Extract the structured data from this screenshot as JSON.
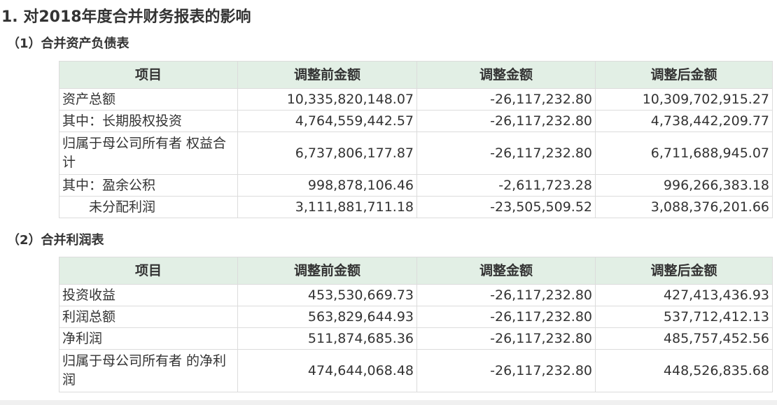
{
  "title": "1. 对2018年度合并财务报表的影响",
  "balance_sheet": {
    "heading": "（1）合并资产负债表",
    "columns": [
      "项目",
      "调整前金额",
      "调整金额",
      "调整后金额"
    ],
    "rows": [
      {
        "item": "资产总额",
        "before": "10,335,820,148.07",
        "adjust": "-26,117,232.80",
        "after": "10,309,702,915.27"
      },
      {
        "item": "其中：长期股权投资",
        "before": "4,764,559,442.57",
        "adjust": "-26,117,232.80",
        "after": "4,738,442,209.77"
      },
      {
        "item": "归属于母公司所有者 权益合计",
        "before": "6,737,806,177.87",
        "adjust": "-26,117,232.80",
        "after": "6,711,688,945.07"
      },
      {
        "item": "其中：盈余公积",
        "before": "998,878,106.46",
        "adjust": "-2,611,723.28",
        "after": "996,266,383.18"
      },
      {
        "item": "未分配利润",
        "before": "3,111,881,711.18",
        "adjust": "-23,505,509.52",
        "after": "3,088,376,201.66"
      }
    ]
  },
  "income_statement": {
    "heading": "（2）合并利润表",
    "columns": [
      "项目",
      "调整前金额",
      "调整金额",
      "调整后金额"
    ],
    "rows": [
      {
        "item": "投资收益",
        "before": "453,530,669.73",
        "adjust": "-26,117,232.80",
        "after": "427,413,436.93"
      },
      {
        "item": "利润总额",
        "before": "563,829,644.93",
        "adjust": "-26,117,232.80",
        "after": "537,712,412.13"
      },
      {
        "item": "净利润",
        "before": "511,874,685.36",
        "adjust": "-26,117,232.80",
        "after": "485,757,452.56"
      },
      {
        "item": "归属于母公司所有者 的净利润",
        "before": "474,644,068.48",
        "adjust": "-26,117,232.80",
        "after": "448,526,835.68"
      }
    ]
  },
  "colors": {
    "header_bg": "#e2efe5",
    "border": "#dcdcdc",
    "text": "#333333"
  }
}
